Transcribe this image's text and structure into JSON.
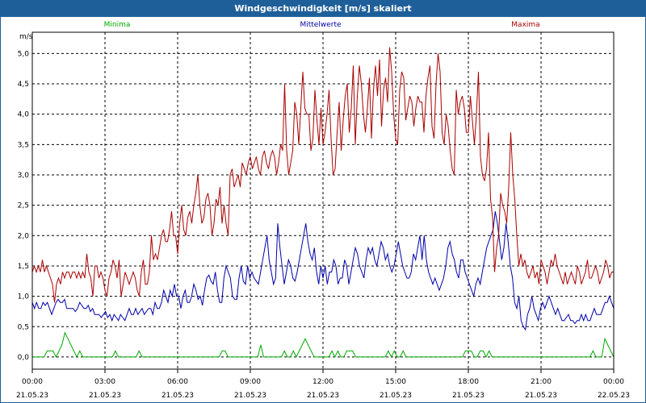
{
  "window": {
    "title": "Windgeschwindigkeit [m/s] skaliert"
  },
  "chart_data": {
    "type": "line",
    "title": "Windgeschwindigkeit [m/s] skaliert",
    "ylabel": "m/s",
    "xlabel": "",
    "ylim": [
      -0.2,
      5.35
    ],
    "xlim": [
      0,
      24
    ],
    "grid": true,
    "legend_position": "top",
    "y_ticks": [
      "0,0",
      "0,5",
      "1,0",
      "1,5",
      "2,0",
      "2,5",
      "3,0",
      "3,5",
      "4,0",
      "4,5",
      "5,0"
    ],
    "x_ticks": [
      {
        "time": "00:00",
        "date": "21.05.23"
      },
      {
        "time": "03:00",
        "date": "21.05.23"
      },
      {
        "time": "06:00",
        "date": "21.05.23"
      },
      {
        "time": "09:00",
        "date": "21.05.23"
      },
      {
        "time": "12:00",
        "date": "21.05.23"
      },
      {
        "time": "15:00",
        "date": "21.05.23"
      },
      {
        "time": "18:00",
        "date": "21.05.23"
      },
      {
        "time": "21:00",
        "date": "21.05.23"
      },
      {
        "time": "00:00",
        "date": "22.05.23"
      }
    ],
    "series": [
      {
        "name": "Minima",
        "color": "#00aa00",
        "values": [
          0.0,
          0.0,
          0.0,
          0.0,
          0.0,
          0.1,
          0.1,
          0.1,
          0.0,
          0.1,
          0.2,
          0.4,
          0.3,
          0.2,
          0.1,
          0.0,
          0.1,
          0.0,
          0.0,
          0.0,
          0.0,
          0.0,
          0.0,
          0.0,
          0.0,
          0.0,
          0.0,
          0.0,
          0.1,
          0.0,
          0.0,
          0.0,
          0.0,
          0.0,
          0.0,
          0.0,
          0.1,
          0.0,
          0.0,
          0.0,
          0.0,
          0.0,
          0.0,
          0.0,
          0.0,
          0.0,
          0.0,
          0.0,
          0.0,
          0.0,
          0.0,
          0.0,
          0.0,
          0.0,
          0.0,
          0.0,
          0.0,
          0.0,
          0.0,
          0.0,
          0.0,
          0.0,
          0.0,
          0.0,
          0.1,
          0.1,
          0.0,
          0.0,
          0.0,
          0.0,
          0.0,
          0.0,
          0.0,
          0.0,
          0.0,
          0.0,
          0.0,
          0.2,
          0.0,
          0.0,
          0.0,
          0.0,
          0.0,
          0.0,
          0.0,
          0.1,
          0.0,
          0.0,
          0.1,
          0.0,
          0.1,
          0.2,
          0.3,
          0.2,
          0.1,
          0.0,
          0.0,
          0.0,
          0.0,
          0.0,
          0.0,
          0.1,
          0.0,
          0.1,
          0.0,
          0.0,
          0.1,
          0.1,
          0.1,
          0.0,
          0.0,
          0.0,
          0.0,
          0.0,
          0.0,
          0.0,
          0.0,
          0.0,
          0.0,
          0.0,
          0.1,
          0.0,
          0.1,
          0.0,
          0.0,
          0.1,
          0.0,
          0.0,
          0.0,
          0.0,
          0.0,
          0.0,
          0.0,
          0.0,
          0.0,
          0.0,
          0.0,
          0.0,
          0.0,
          0.0,
          0.0,
          0.0,
          0.0,
          0.0,
          0.0,
          0.0,
          0.1,
          0.1,
          0.1,
          0.0,
          0.0,
          0.1,
          0.1,
          0.0,
          0.1,
          0.0,
          0.0,
          0.0,
          0.0,
          0.0,
          0.0,
          0.0,
          0.0,
          0.0,
          0.0,
          0.0,
          0.0,
          0.0,
          0.0,
          0.0,
          0.0,
          0.0,
          0.0,
          0.0,
          0.0,
          0.0,
          0.0,
          0.0,
          0.0,
          0.0,
          0.0,
          0.0,
          0.0,
          0.0,
          0.0,
          0.0,
          0.0,
          0.0,
          0.0,
          0.1,
          0.0,
          0.0,
          0.0,
          0.3,
          0.2,
          0.1,
          0.0
        ]
      },
      {
        "name": "Mittelwerte",
        "color": "#0000aa",
        "values": [
          0.9,
          0.8,
          0.9,
          0.8,
          0.8,
          0.9,
          0.85,
          0.9,
          0.8,
          0.7,
          0.8,
          0.9,
          0.95,
          0.9,
          0.9,
          0.95,
          0.8,
          0.8,
          0.8,
          0.8,
          0.75,
          0.8,
          0.9,
          0.85,
          0.8,
          0.8,
          0.85,
          0.75,
          0.8,
          0.7,
          0.7,
          0.7,
          0.65,
          0.7,
          0.75,
          0.65,
          0.7,
          0.6,
          0.7,
          0.65,
          0.6,
          0.7,
          0.65,
          0.6,
          0.7,
          0.8,
          0.7,
          0.7,
          0.8,
          0.7,
          0.75,
          0.8,
          0.7,
          0.75,
          0.8,
          0.8,
          0.7,
          0.9,
          0.8,
          0.8,
          0.9,
          1.1,
          1.0,
          0.9,
          1.1,
          1.0,
          1.2,
          1.0,
          1.0,
          0.8,
          1.0,
          1.1,
          0.9,
          0.9,
          1.0,
          1.2,
          1.1,
          0.95,
          1.0,
          0.85,
          1.1,
          1.3,
          1.35,
          1.25,
          1.2,
          1.4,
          1.1,
          0.9,
          0.9,
          1.3,
          1.5,
          1.4,
          1.3,
          1.0,
          0.95,
          0.95,
          1.3,
          1.5,
          1.25,
          1.2,
          1.5,
          1.3,
          1.4,
          1.3,
          1.25,
          1.2,
          1.4,
          1.6,
          1.8,
          2.0,
          1.6,
          1.4,
          1.2,
          1.3,
          2.2,
          1.8,
          1.5,
          1.2,
          1.4,
          1.6,
          1.5,
          1.3,
          1.25,
          1.4,
          1.6,
          1.8,
          2.0,
          2.2,
          1.9,
          1.7,
          1.6,
          1.8,
          1.4,
          1.2,
          1.5,
          1.3,
          1.5,
          1.2,
          1.4,
          1.4,
          1.6,
          1.5,
          1.2,
          1.3,
          1.3,
          1.6,
          1.5,
          1.2,
          1.4,
          1.6,
          1.8,
          1.7,
          1.5,
          1.4,
          1.3,
          1.6,
          1.8,
          1.7,
          1.8,
          1.6,
          1.5,
          1.7,
          1.9,
          1.8,
          1.6,
          1.7,
          1.5,
          1.4,
          1.5,
          1.7,
          1.9,
          1.7,
          1.5,
          1.4,
          1.3,
          1.3,
          1.4,
          1.7,
          1.6,
          1.8,
          2.0,
          1.6,
          2.0,
          1.6,
          1.4,
          1.3,
          1.2,
          1.3,
          1.2,
          1.1,
          1.2,
          1.3,
          1.5,
          1.8,
          1.9,
          1.7,
          1.6,
          1.4,
          1.3,
          1.6,
          1.6,
          1.4,
          1.3,
          1.2,
          1.1,
          1.0,
          1.2,
          1.3,
          1.2,
          1.4,
          1.6,
          1.8,
          1.9,
          2.0,
          2.1,
          2.4,
          2.2,
          1.9,
          1.6,
          1.8,
          2.2,
          1.9,
          1.5,
          1.3,
          0.9,
          0.8,
          1.0,
          0.6,
          0.5,
          0.45,
          0.7,
          0.8,
          1.0,
          0.8,
          0.7,
          0.6,
          0.8,
          0.9,
          0.8,
          0.9,
          1.0,
          0.9,
          0.8,
          0.7,
          0.8,
          0.7,
          0.6,
          0.6,
          0.65,
          0.7,
          0.6,
          0.6,
          0.55,
          0.6,
          0.6,
          0.7,
          0.6,
          0.7,
          0.6,
          0.6,
          0.7,
          0.8,
          0.7,
          0.7,
          0.7,
          0.8,
          0.9,
          0.9,
          1.0,
          0.9,
          0.8
        ]
      },
      {
        "name": "Maxima",
        "color": "#aa0000",
        "values": [
          1.4,
          1.5,
          1.4,
          1.5,
          1.4,
          1.6,
          1.4,
          1.5,
          1.4,
          1.3,
          1.2,
          0.9,
          1.2,
          1.3,
          1.2,
          1.4,
          1.3,
          1.4,
          1.4,
          1.3,
          1.4,
          1.4,
          1.3,
          1.4,
          1.3,
          1.4,
          1.3,
          1.7,
          1.4,
          1.3,
          1.0,
          1.5,
          1.5,
          1.3,
          1.4,
          1.3,
          1.1,
          1.0,
          1.3,
          1.4,
          1.6,
          1.5,
          1.3,
          1.6,
          1.0,
          1.2,
          1.4,
          1.3,
          1.2,
          1.3,
          1.4,
          1.3,
          1.1,
          1.0,
          1.4,
          1.6,
          1.2,
          1.2,
          1.4,
          2.0,
          1.6,
          1.7,
          1.6,
          1.8,
          2.0,
          2.1,
          1.9,
          1.9,
          2.1,
          2.4,
          2.0,
          2.0,
          1.7,
          2.2,
          2.5,
          2.1,
          2.0,
          2.3,
          2.4,
          2.2,
          2.5,
          2.7,
          3.0,
          2.5,
          2.2,
          2.3,
          2.6,
          2.7,
          2.5,
          2.0,
          2.2,
          2.6,
          2.5,
          2.8,
          2.2,
          2.5,
          2.2,
          2.0,
          3.0,
          3.1,
          2.8,
          2.9,
          3.0,
          2.8,
          3.2,
          3.1,
          3.0,
          3.2,
          3.3,
          3.1,
          3.2,
          3.3,
          3.1,
          3.0,
          3.3,
          3.4,
          3.2,
          3.1,
          3.3,
          3.4,
          3.3,
          3.0,
          3.2,
          3.5,
          3.4,
          4.5,
          3.4,
          3.0,
          3.2,
          3.4,
          4.2,
          4.0,
          3.5,
          4.1,
          4.7,
          4.1,
          4.0,
          4.0,
          3.4,
          3.6,
          4.4,
          3.9,
          3.5,
          4.1,
          3.5,
          3.7,
          4.0,
          4.4,
          3.6,
          3.0,
          3.1,
          3.7,
          4.2,
          3.4,
          3.9,
          4.3,
          4.5,
          3.7,
          4.1,
          4.8,
          3.5,
          4.3,
          4.8,
          4.5,
          4.0,
          3.7,
          4.1,
          4.6,
          3.6,
          4.4,
          4.8,
          4.3,
          4.9,
          3.8,
          4.4,
          4.6,
          4.2,
          5.1,
          4.7,
          4.0,
          3.6,
          3.5,
          4.4,
          4.7,
          4.6,
          3.9,
          4.1,
          4.3,
          4.2,
          3.8,
          4.1,
          4.3,
          4.2,
          4.2,
          3.7,
          4.3,
          4.6,
          4.8,
          3.8,
          3.6,
          4.5,
          5.0,
          4.7,
          3.7,
          3.5,
          4.0,
          3.8,
          3.4,
          3.1,
          3.0,
          4.4,
          4.0,
          4.2,
          4.3,
          4.1,
          3.7,
          3.7,
          4.3,
          3.9,
          3.5,
          4.0,
          4.7,
          3.3,
          3.0,
          2.9,
          3.1,
          3.7,
          2.6,
          2.3,
          1.4,
          1.8,
          2.0,
          2.7,
          2.5,
          2.4,
          2.2,
          2.8,
          3.7,
          3.0,
          2.6,
          2.0,
          1.5,
          1.7,
          1.5,
          1.6,
          1.4,
          1.3,
          1.4,
          1.5,
          1.3,
          1.4,
          1.2,
          1.6,
          1.5,
          1.4,
          1.2,
          1.4,
          1.6,
          1.5,
          1.7,
          1.5,
          1.4,
          1.3,
          1.2,
          1.4,
          1.2,
          1.3,
          1.4,
          1.3,
          1.2,
          1.5,
          1.4,
          1.2,
          1.3,
          1.4,
          1.6,
          1.3,
          1.3,
          1.4,
          1.5,
          1.4,
          1.2,
          1.3,
          1.4,
          1.6,
          1.5,
          1.3,
          1.4,
          1.4
        ]
      }
    ]
  }
}
